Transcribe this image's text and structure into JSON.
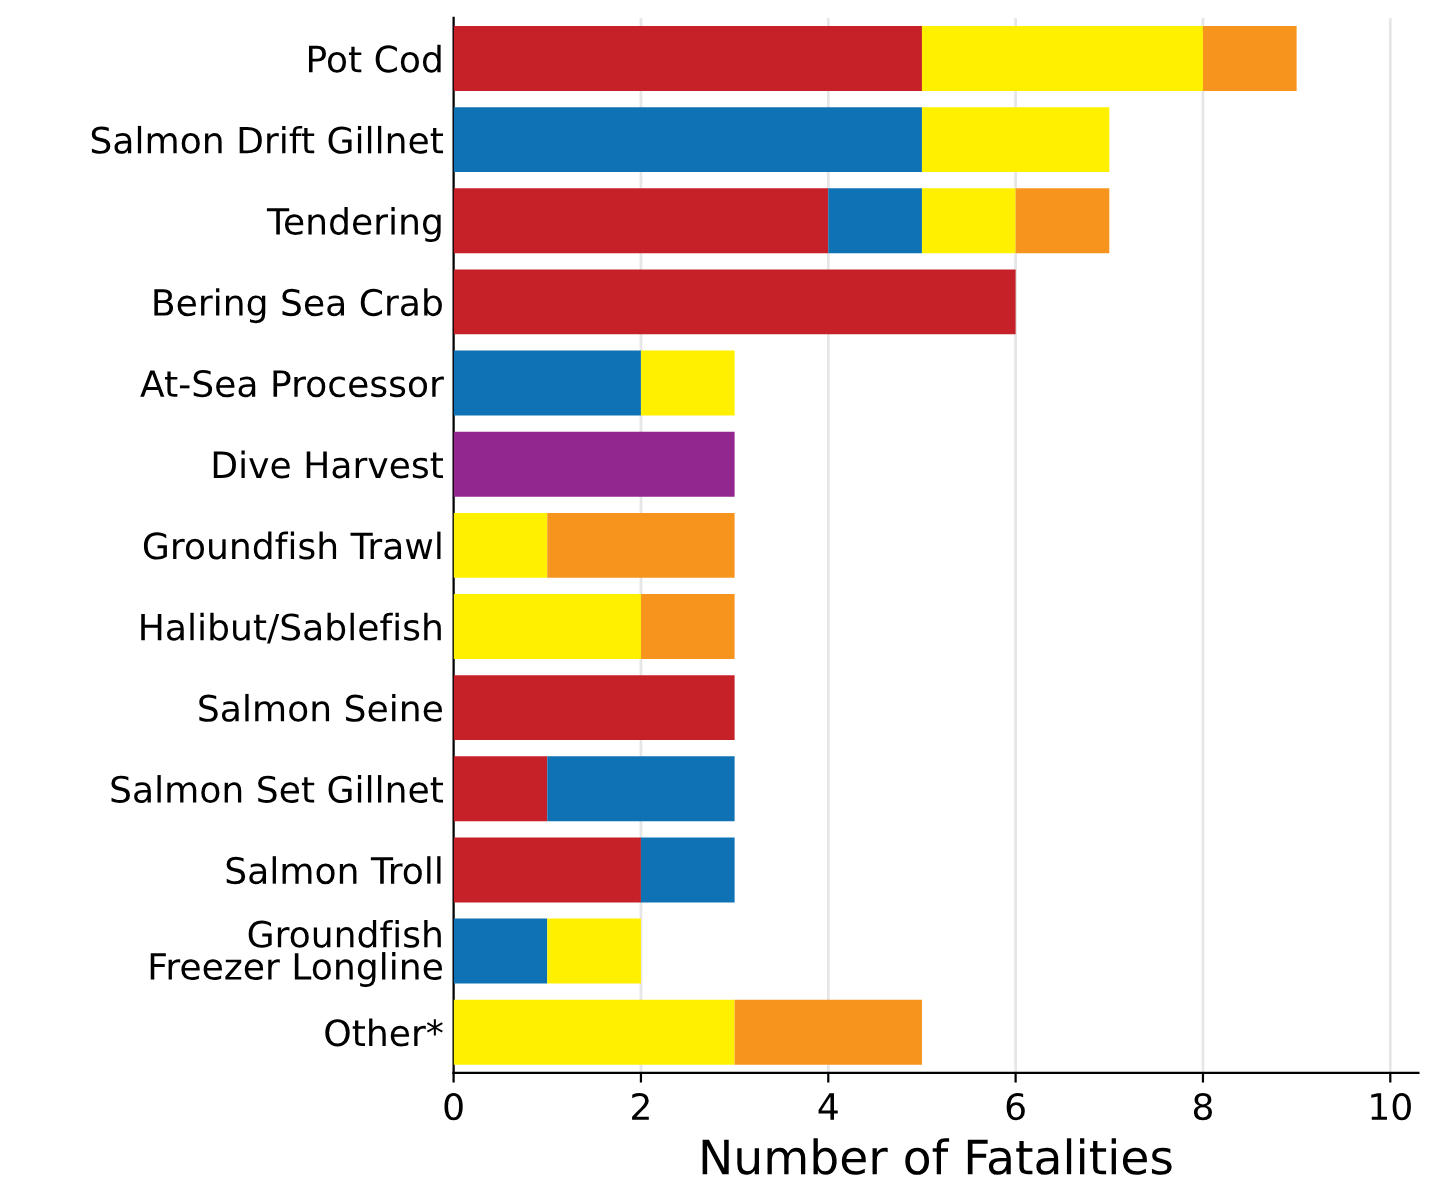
{
  "chart_data": {
    "type": "bar",
    "orientation": "horizontal",
    "stacked": true,
    "xlabel": "Number of Fatalities",
    "categories": [
      "Pot Cod",
      "Salmon Drift Gillnet",
      "Tendering",
      "Bering Sea Crab",
      "At-Sea Processor",
      "Dive Harvest",
      "Groundfish Trawl",
      "Halibut/Sablefish",
      "Salmon Seine",
      "Salmon Set Gillnet",
      "Salmon Troll",
      "Groundfish\nFreezer Longline",
      "Other*"
    ],
    "series": [
      {
        "color": "#c62128",
        "values": [
          5,
          0,
          4,
          6,
          0,
          0,
          0,
          0,
          3,
          1,
          2,
          0,
          0
        ]
      },
      {
        "color": "#0f72b5",
        "values": [
          0,
          5,
          1,
          0,
          2,
          0,
          0,
          0,
          0,
          2,
          1,
          1,
          0
        ]
      },
      {
        "color": "#fff000",
        "values": [
          3,
          2,
          1,
          0,
          1,
          0,
          1,
          2,
          0,
          0,
          0,
          1,
          3
        ]
      },
      {
        "color": "#f7941d",
        "values": [
          1,
          0,
          1,
          0,
          0,
          0,
          2,
          1,
          0,
          0,
          0,
          0,
          2
        ]
      },
      {
        "color": "#92278f",
        "values": [
          0,
          0,
          0,
          0,
          0,
          3,
          0,
          0,
          0,
          0,
          0,
          0,
          0
        ]
      }
    ],
    "xlim": [
      0,
      10.3
    ],
    "xticks": [
      0,
      2,
      4,
      6,
      8,
      10
    ],
    "grid": "x"
  }
}
